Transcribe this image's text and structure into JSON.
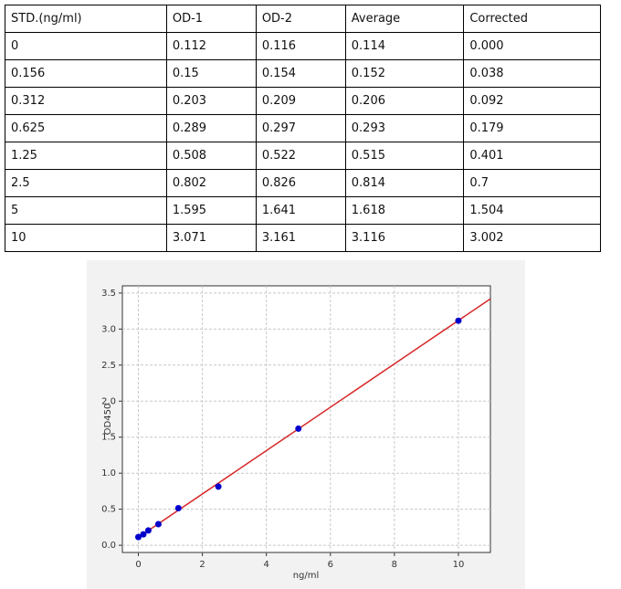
{
  "table": {
    "header": [
      "STD.(ng/ml)",
      "OD-1",
      "OD-2",
      "Average",
      "Corrected"
    ],
    "rows": [
      [
        "0",
        "0.112",
        "0.116",
        "0.114",
        "0.000"
      ],
      [
        "0.156",
        "0.15",
        "0.154",
        "0.152",
        "0.038"
      ],
      [
        "0.312",
        "0.203",
        "0.209",
        "0.206",
        "0.092"
      ],
      [
        "0.625",
        "0.289",
        "0.297",
        "0.293",
        "0.179"
      ],
      [
        "1.25",
        "0.508",
        "0.522",
        "0.515",
        "0.401"
      ],
      [
        "2.5",
        "0.802",
        "0.826",
        "0.814",
        "0.7"
      ],
      [
        "5",
        "1.595",
        "1.641",
        "1.618",
        "1.504"
      ],
      [
        "10",
        "3.071",
        "3.161",
        "3.116",
        "3.002"
      ]
    ]
  },
  "chart_data": {
    "type": "scatter",
    "x_label": "ng/ml",
    "y_label": "OD450",
    "xlim": [
      -0.5,
      11
    ],
    "ylim": [
      -0.1,
      3.6
    ],
    "xticks": [
      0,
      2,
      4,
      6,
      8,
      10
    ],
    "yticks": [
      {
        "value": 0,
        "label": "0.0"
      },
      0.5,
      {
        "value": 1,
        "label": "1.0"
      },
      1.5,
      {
        "value": 2,
        "label": "2.0"
      },
      2.5,
      {
        "value": 3,
        "label": "3.0"
      },
      3.5
    ],
    "grid": true,
    "series": [
      {
        "color": "#d62728",
        "mode": "line",
        "x": [
          0,
          11
        ],
        "values": [
          0.11,
          3.42
        ]
      },
      {
        "color": "#0000cc",
        "mode": "markers",
        "x": [
          0,
          0.156,
          0.312,
          0.625,
          1.25,
          2.5,
          5,
          10
        ],
        "values": [
          0.114,
          0.152,
          0.206,
          0.293,
          0.515,
          0.814,
          1.618,
          3.116
        ]
      }
    ]
  }
}
